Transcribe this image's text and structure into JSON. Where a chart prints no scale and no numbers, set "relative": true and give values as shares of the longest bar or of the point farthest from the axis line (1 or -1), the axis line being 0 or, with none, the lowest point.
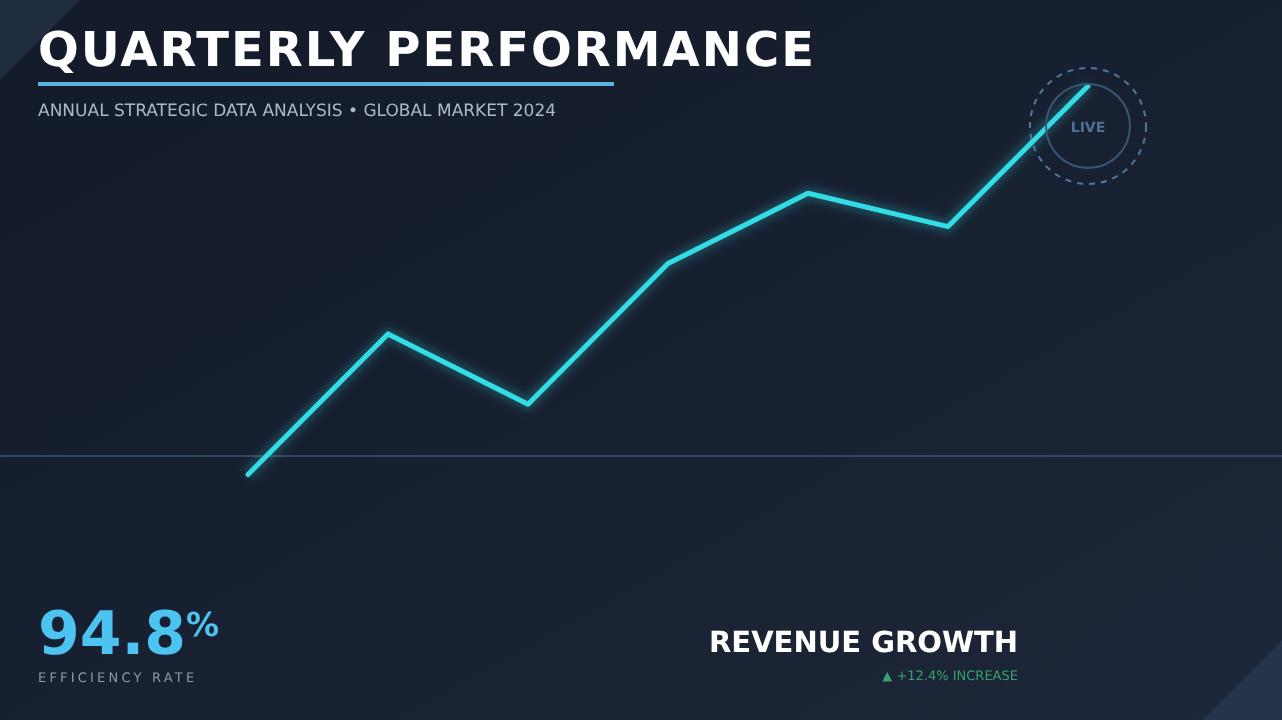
{
  "chart_data": {
    "type": "line",
    "relative": true,
    "title": "QUARTERLY PERFORMANCE",
    "subtitle": "ANNUAL STRATEGIC DATA ANALYSIS • GLOBAL MARKET 2024",
    "categories": [
      null,
      null,
      null,
      null,
      null,
      null,
      null
    ],
    "series": [
      {
        "color": "#33dde6",
        "values": [
          -0.05,
          0.33,
          0.14,
          0.52,
          0.71,
          0.62,
          1
        ]
      }
    ],
    "annotations": [
      "LIVE",
      "94.8$^{%}$",
      "EFFICIENCY RATE",
      "REVENUE GROWTH",
      "▲ +12.4% INCREASE"
    ]
  }
}
